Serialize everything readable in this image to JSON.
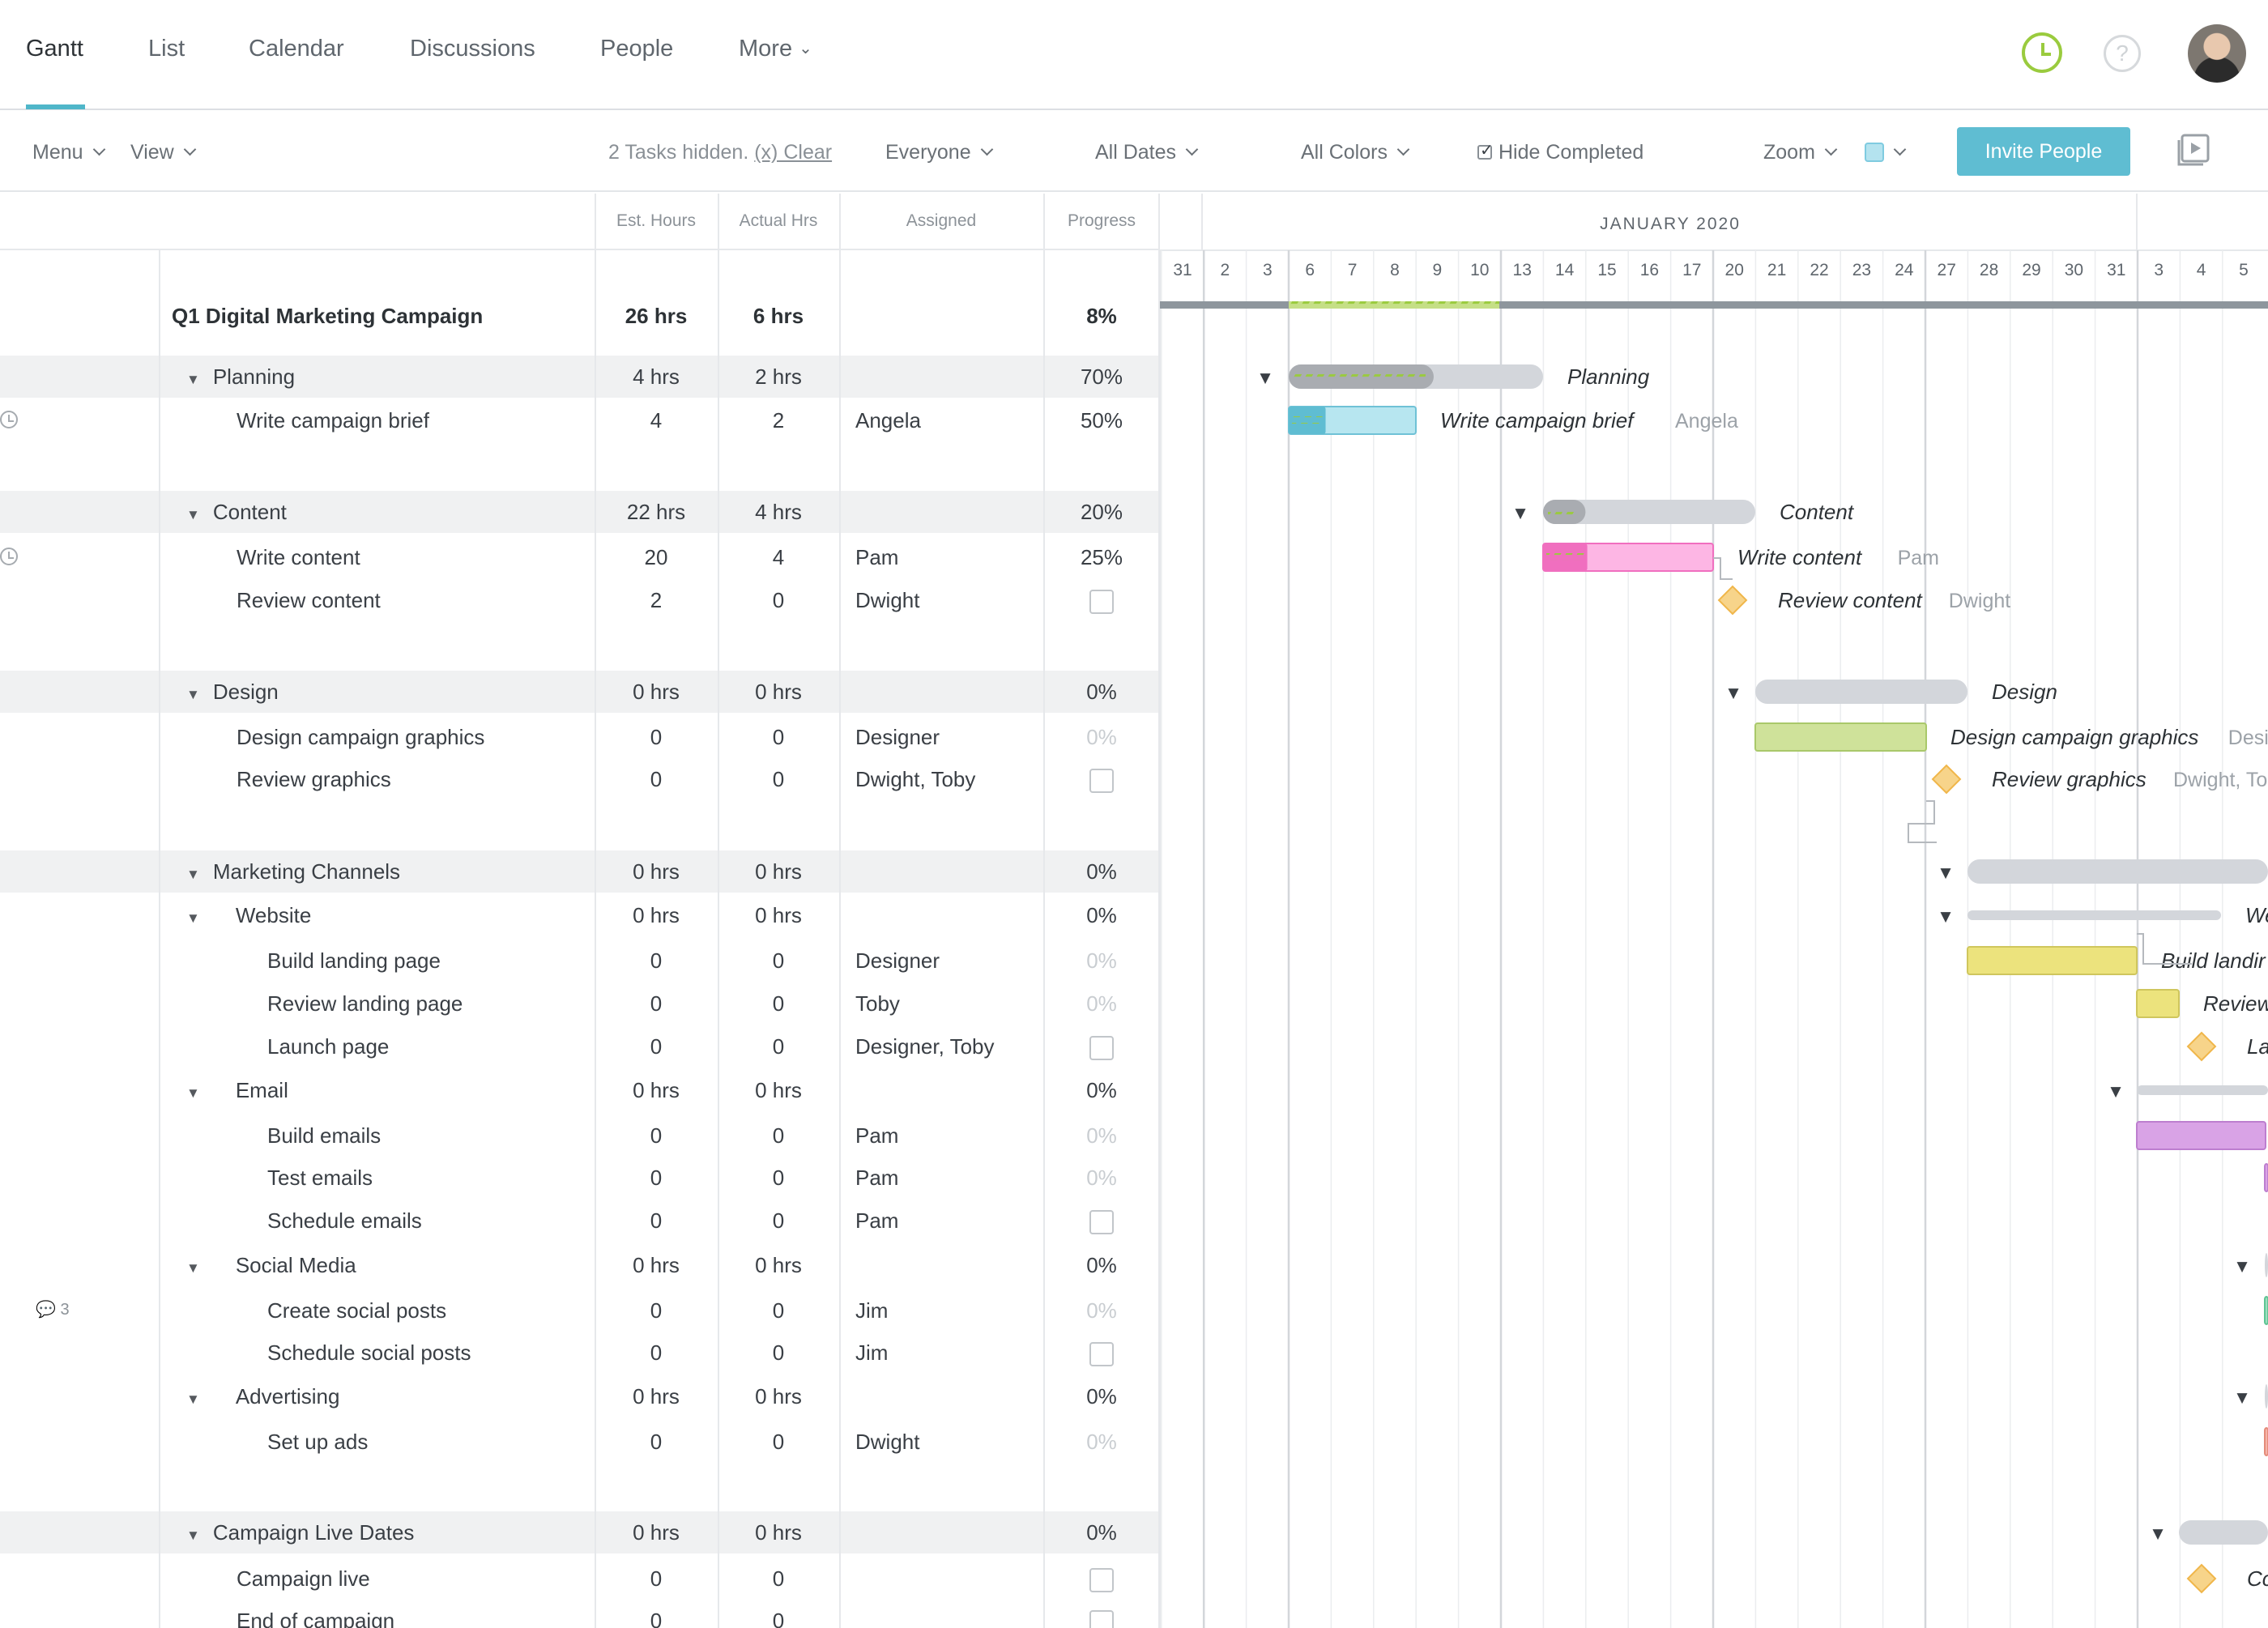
{
  "tabs": [
    "Gantt",
    "List",
    "Calendar",
    "Discussions",
    "People",
    "More"
  ],
  "toolbar": {
    "menu": "Menu",
    "view": "View",
    "hidden_info": "2 Tasks hidden.",
    "clear": "(x) Clear",
    "everyone": "Everyone",
    "all_dates": "All Dates",
    "all_colors": "All Colors",
    "hide_completed": "Hide Completed",
    "zoom": "Zoom",
    "invite": "Invite People"
  },
  "columns": {
    "est": "Est. Hours",
    "actual": "Actual Hrs",
    "assigned": "Assigned",
    "progress": "Progress"
  },
  "month_label": "JANUARY 2020",
  "days": [
    "31",
    "2",
    "3",
    "6",
    "7",
    "8",
    "9",
    "10",
    "13",
    "14",
    "15",
    "16",
    "17",
    "20",
    "21",
    "22",
    "23",
    "24",
    "27",
    "28",
    "29",
    "30",
    "31",
    "3",
    "4",
    "5"
  ],
  "colors": {
    "accent": "#4fb6c9",
    "planning": "#5fbdd2",
    "content": "#f06fbf",
    "design": "#c9df8f",
    "website": "#ece37d",
    "email": "#d9a3e6",
    "milestone": "#f7c96b",
    "summary": "#d3d6db"
  },
  "rows": [
    {
      "name": "Q1 Digital Marketing Campaign",
      "est": "26 hrs",
      "actual": "6 hrs",
      "assigned": "",
      "progress": "8%",
      "type": "root",
      "level": 0
    },
    {
      "name": "Planning",
      "est": "4 hrs",
      "actual": "2 hrs",
      "assigned": "",
      "progress": "70%",
      "type": "group",
      "level": 1
    },
    {
      "name": "Write campaign brief",
      "est": "4",
      "actual": "2",
      "assigned": "Angela",
      "progress": "50%",
      "type": "task",
      "level": 2,
      "clock": true
    },
    {
      "name": "Content",
      "est": "22 hrs",
      "actual": "4 hrs",
      "assigned": "",
      "progress": "20%",
      "type": "group",
      "level": 1
    },
    {
      "name": "Write content",
      "est": "20",
      "actual": "4",
      "assigned": "Pam",
      "progress": "25%",
      "type": "task",
      "level": 2,
      "clock": true
    },
    {
      "name": "Review content",
      "est": "2",
      "actual": "0",
      "assigned": "Dwight",
      "progress": "",
      "type": "milestone",
      "level": 2
    },
    {
      "name": "Design",
      "est": "0 hrs",
      "actual": "0 hrs",
      "assigned": "",
      "progress": "0%",
      "type": "group",
      "level": 1
    },
    {
      "name": "Design campaign graphics",
      "est": "0",
      "actual": "0",
      "assigned": "Designer",
      "progress": "0%",
      "type": "task",
      "level": 2
    },
    {
      "name": "Review graphics",
      "est": "0",
      "actual": "0",
      "assigned": "Dwight, Toby",
      "progress": "",
      "type": "milestone",
      "level": 2
    },
    {
      "name": "Marketing Channels",
      "est": "0 hrs",
      "actual": "0 hrs",
      "assigned": "",
      "progress": "0%",
      "type": "group",
      "level": 1
    },
    {
      "name": "Website",
      "est": "0 hrs",
      "actual": "0 hrs",
      "assigned": "",
      "progress": "0%",
      "type": "subgroup",
      "level": 2
    },
    {
      "name": "Build landing page",
      "est": "0",
      "actual": "0",
      "assigned": "Designer",
      "progress": "0%",
      "type": "task",
      "level": 3
    },
    {
      "name": "Review landing page",
      "est": "0",
      "actual": "0",
      "assigned": "Toby",
      "progress": "0%",
      "type": "task",
      "level": 3
    },
    {
      "name": "Launch page",
      "est": "0",
      "actual": "0",
      "assigned": "Designer, Toby",
      "progress": "",
      "type": "milestone",
      "level": 3
    },
    {
      "name": "Email",
      "est": "0 hrs",
      "actual": "0 hrs",
      "assigned": "",
      "progress": "0%",
      "type": "subgroup",
      "level": 2
    },
    {
      "name": "Build emails",
      "est": "0",
      "actual": "0",
      "assigned": "Pam",
      "progress": "0%",
      "type": "task",
      "level": 3
    },
    {
      "name": "Test emails",
      "est": "0",
      "actual": "0",
      "assigned": "Pam",
      "progress": "0%",
      "type": "task",
      "level": 3
    },
    {
      "name": "Schedule emails",
      "est": "0",
      "actual": "0",
      "assigned": "Pam",
      "progress": "",
      "type": "milestone",
      "level": 3
    },
    {
      "name": "Social Media",
      "est": "0 hrs",
      "actual": "0 hrs",
      "assigned": "",
      "progress": "0%",
      "type": "subgroup",
      "level": 2
    },
    {
      "name": "Create social posts",
      "est": "0",
      "actual": "0",
      "assigned": "Jim",
      "progress": "0%",
      "type": "task",
      "level": 3,
      "comments": "3"
    },
    {
      "name": "Schedule social posts",
      "est": "0",
      "actual": "0",
      "assigned": "Jim",
      "progress": "",
      "type": "milestone",
      "level": 3
    },
    {
      "name": "Advertising",
      "est": "0 hrs",
      "actual": "0 hrs",
      "assigned": "",
      "progress": "0%",
      "type": "subgroup",
      "level": 2
    },
    {
      "name": "Set up ads",
      "est": "0",
      "actual": "0",
      "assigned": "Dwight",
      "progress": "0%",
      "type": "task",
      "level": 3
    },
    {
      "name": "Campaign Live Dates",
      "est": "0 hrs",
      "actual": "0 hrs",
      "assigned": "",
      "progress": "0%",
      "type": "group",
      "level": 1
    },
    {
      "name": "Campaign live",
      "est": "0",
      "actual": "0",
      "assigned": "",
      "progress": "",
      "type": "milestone",
      "level": 2
    },
    {
      "name": "End of campaign",
      "est": "0",
      "actual": "0",
      "assigned": "",
      "progress": "",
      "type": "milestone",
      "level": 2
    }
  ],
  "gantt_bars": [
    {
      "row": 0,
      "kind": "root",
      "label": ""
    },
    {
      "row": 1,
      "kind": "summary",
      "label": "Planning",
      "assignee": ""
    },
    {
      "row": 2,
      "kind": "task",
      "label": "Write campaign brief",
      "assignee": "Angela"
    },
    {
      "row": 3,
      "kind": "summary",
      "label": "Content",
      "assignee": ""
    },
    {
      "row": 4,
      "kind": "task",
      "label": "Write content",
      "assignee": "Pam"
    },
    {
      "row": 5,
      "kind": "milestone",
      "label": "Review content",
      "assignee": "Dwight"
    },
    {
      "row": 6,
      "kind": "summary",
      "label": "Design",
      "assignee": ""
    },
    {
      "row": 7,
      "kind": "task",
      "label": "Design campaign graphics",
      "assignee": "Desig"
    },
    {
      "row": 8,
      "kind": "milestone",
      "label": "Review graphics",
      "assignee": "Dwight, To"
    },
    {
      "row": 9,
      "kind": "summary",
      "label": "",
      "assignee": ""
    },
    {
      "row": 10,
      "kind": "summary",
      "label": "We",
      "assignee": ""
    },
    {
      "row": 11,
      "kind": "task",
      "label": "Build landir",
      "assignee": ""
    },
    {
      "row": 12,
      "kind": "task",
      "label": "Review",
      "assignee": ""
    },
    {
      "row": 13,
      "kind": "milestone",
      "label": "La",
      "assignee": ""
    },
    {
      "row": 14,
      "kind": "summary",
      "label": "",
      "assignee": ""
    },
    {
      "row": 15,
      "kind": "task",
      "label": "",
      "assignee": ""
    },
    {
      "row": 16,
      "kind": "task",
      "label": "",
      "assignee": ""
    },
    {
      "row": 18,
      "kind": "summary",
      "label": "",
      "assignee": ""
    },
    {
      "row": 19,
      "kind": "task",
      "label": "",
      "assignee": ""
    },
    {
      "row": 21,
      "kind": "summary",
      "label": "",
      "assignee": ""
    },
    {
      "row": 22,
      "kind": "task",
      "label": "",
      "assignee": ""
    },
    {
      "row": 23,
      "kind": "summary",
      "label": "",
      "assignee": ""
    },
    {
      "row": 24,
      "kind": "milestone",
      "label": "Cc",
      "assignee": ""
    }
  ]
}
